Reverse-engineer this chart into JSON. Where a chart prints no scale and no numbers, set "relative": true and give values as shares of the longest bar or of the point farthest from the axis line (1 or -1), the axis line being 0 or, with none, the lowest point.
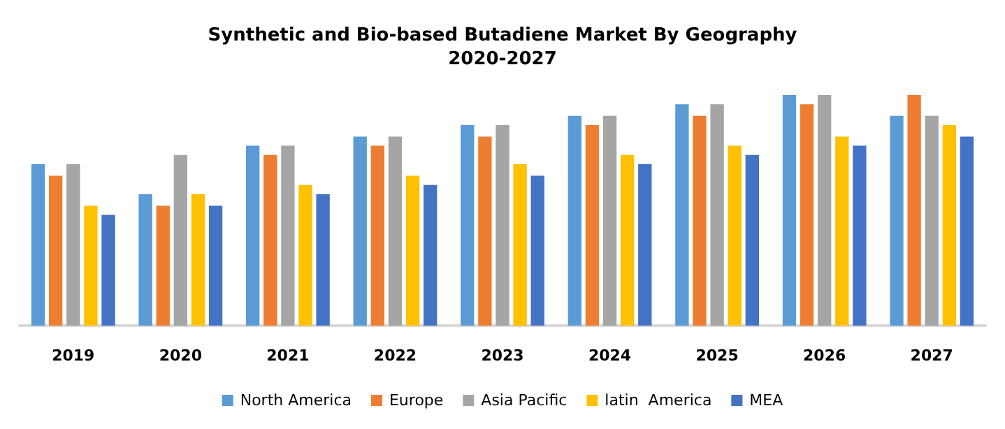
{
  "chart_data": {
    "type": "bar",
    "title": "Synthetic and Bio-based Butadiene Market By Geography",
    "subtitle": "2020-2027",
    "relative": true,
    "categories": [
      "2019",
      "2020",
      "2021",
      "2022",
      "2023",
      "2024",
      "2025",
      "2026",
      "2027"
    ],
    "series": [
      {
        "name": "North America",
        "color": "#5b9bd5",
        "values": [
          0.7,
          0.57,
          0.78,
          0.82,
          0.87,
          0.91,
          0.96,
          1,
          0.91
        ]
      },
      {
        "name": "Europe",
        "color": "#ed7d31",
        "values": [
          0.65,
          0.52,
          0.74,
          0.78,
          0.82,
          0.87,
          0.91,
          0.96,
          1
        ]
      },
      {
        "name": "Asia Pacific",
        "color": "#a5a5a5",
        "values": [
          0.7,
          0.74,
          0.78,
          0.82,
          0.87,
          0.91,
          0.96,
          1,
          0.91
        ]
      },
      {
        "name": "latin  America",
        "color": "#ffc000",
        "values": [
          0.52,
          0.57,
          0.61,
          0.65,
          0.7,
          0.74,
          0.78,
          0.82,
          0.87
        ]
      },
      {
        "name": "MEA",
        "color": "#4472c4",
        "values": [
          0.48,
          0.52,
          0.57,
          0.61,
          0.65,
          0.7,
          0.74,
          0.78,
          0.82
        ]
      }
    ],
    "legend": "bottom"
  }
}
